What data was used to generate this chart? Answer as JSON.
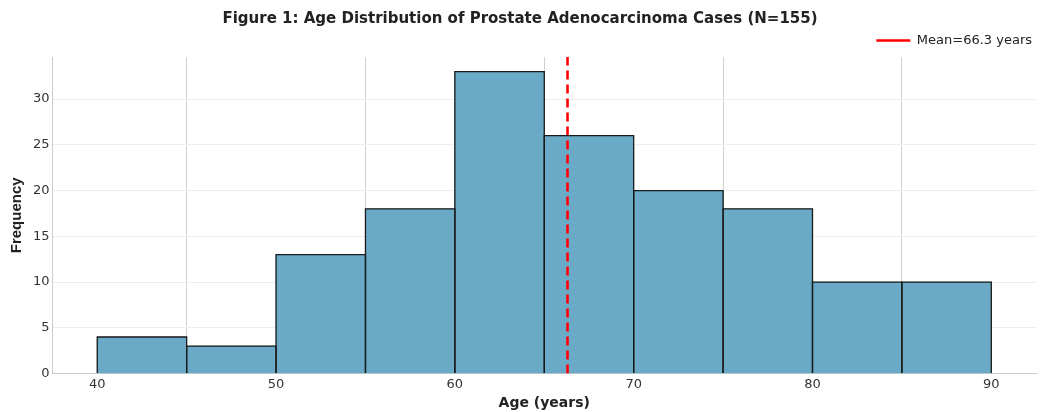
{
  "chart_data": {
    "type": "histogram",
    "title": "Figure 1: Age Distribution of Prostate Adenocarcinoma Cases (N=155)",
    "xlabel": "Age (years)",
    "ylabel": "Frequency",
    "bins": [
      40,
      45,
      50,
      55,
      60,
      65,
      70,
      75,
      80,
      85,
      90
    ],
    "values": [
      4,
      3,
      13,
      18,
      33,
      26,
      20,
      18,
      10,
      10
    ],
    "color": "#6aaac6",
    "xlim": [
      37.5,
      92.5
    ],
    "xticks": [
      40,
      50,
      60,
      70,
      80,
      90
    ],
    "ylim": [
      0,
      34.6
    ],
    "yticks": [
      0,
      5,
      10,
      15,
      20,
      25,
      30
    ],
    "ref_lines": [
      {
        "axis": "x",
        "value": 66.3,
        "label": "Mean=66.3 years",
        "color": "#ff0000",
        "line_style": "dashed"
      }
    ],
    "grid": true,
    "legend": "top right"
  }
}
